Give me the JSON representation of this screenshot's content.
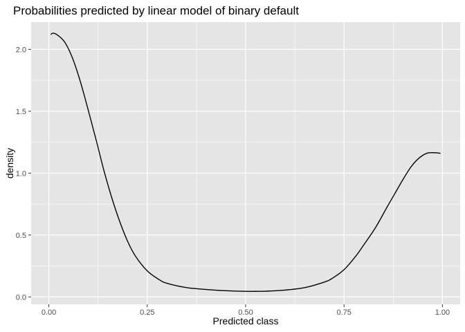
{
  "chart_data": {
    "type": "line",
    "title": "Probabilities predicted by linear model of binary default",
    "xlabel": "Predicted class",
    "ylabel": "density",
    "xlim": [
      -0.045,
      1.045
    ],
    "ylim": [
      -0.06,
      2.22
    ],
    "x_ticks": [
      0.0,
      0.25,
      0.5,
      0.75,
      1.0
    ],
    "x_tick_labels": [
      "0.00",
      "0.25",
      "0.50",
      "0.75",
      "1.00"
    ],
    "y_ticks": [
      0.0,
      0.5,
      1.0,
      1.5,
      2.0
    ],
    "y_tick_labels": [
      "0.0",
      "0.5",
      "1.0",
      "1.5",
      "2.0"
    ],
    "grid": true,
    "colors": {
      "panel": "#e5e5e5",
      "grid": "#ffffff",
      "line": "#000000"
    },
    "series": [
      {
        "x": [
          0.005,
          0.01,
          0.02,
          0.04,
          0.06,
          0.08,
          0.1,
          0.12,
          0.14,
          0.16,
          0.18,
          0.2,
          0.22,
          0.25,
          0.28,
          0.3,
          0.35,
          0.4,
          0.45,
          0.5,
          0.53,
          0.55,
          0.6,
          0.65,
          0.7,
          0.72,
          0.75,
          0.78,
          0.8,
          0.83,
          0.86,
          0.88,
          0.9,
          0.92,
          0.94,
          0.96,
          0.98,
          0.995
        ],
        "y": [
          2.12,
          2.13,
          2.12,
          2.06,
          1.93,
          1.74,
          1.51,
          1.27,
          1.02,
          0.8,
          0.61,
          0.45,
          0.33,
          0.21,
          0.14,
          0.11,
          0.075,
          0.06,
          0.05,
          0.045,
          0.045,
          0.046,
          0.055,
          0.075,
          0.12,
          0.15,
          0.22,
          0.33,
          0.42,
          0.56,
          0.73,
          0.84,
          0.95,
          1.05,
          1.12,
          1.16,
          1.165,
          1.16
        ]
      }
    ]
  }
}
